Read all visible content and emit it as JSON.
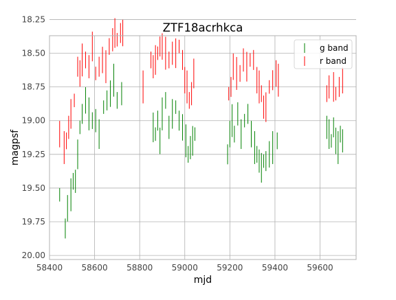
{
  "chart_data": {
    "type": "scatter",
    "title": "ZTF18acrhkca",
    "xlabel": "mjd",
    "ylabel": "magpsf",
    "xlim": [
      58400,
      59760
    ],
    "ylim": [
      20.03,
      18.37
    ],
    "y_inverted": true,
    "grid": true,
    "legend_position": "top-right",
    "x_ticks": [
      "58400",
      "58600",
      "58800",
      "59000",
      "59200",
      "59400",
      "59600"
    ],
    "y_ticks": [
      "18.25",
      "18.50",
      "18.75",
      "19.00",
      "19.25",
      "19.50",
      "19.75",
      "20.00"
    ],
    "marker": "vertical error bar (no marker)",
    "series": [
      {
        "name": "g band",
        "color": "#008000",
        "x": [
          58445,
          58470,
          58480,
          58495,
          58505,
          58515,
          58525,
          58535,
          58545,
          58560,
          58575,
          58590,
          58605,
          58620,
          58640,
          58655,
          58670,
          58685,
          58700,
          58720,
          58860,
          58870,
          58880,
          58890,
          58900,
          58915,
          58930,
          58945,
          58960,
          58975,
          58990,
          59005,
          59015,
          59025,
          59035,
          59045,
          59190,
          59200,
          59210,
          59220,
          59235,
          59250,
          59265,
          59280,
          59295,
          59310,
          59320,
          59330,
          59340,
          59350,
          59360,
          59375,
          59390,
          59410,
          59630,
          59640,
          59650,
          59660,
          59670,
          59680,
          59690,
          59700
        ],
        "y": [
          19.55,
          19.8,
          19.65,
          19.55,
          19.45,
          19.45,
          19.25,
          19.05,
          18.95,
          18.85,
          18.95,
          19.0,
          19.0,
          19.1,
          18.9,
          18.85,
          18.8,
          18.7,
          18.85,
          18.8,
          19.05,
          19.1,
          19.0,
          19.15,
          18.95,
          18.85,
          19.05,
          18.95,
          18.9,
          19.0,
          19.05,
          19.15,
          19.25,
          19.2,
          19.15,
          19.1,
          19.25,
          19.1,
          19.0,
          19.1,
          18.95,
          19.1,
          19.0,
          18.95,
          19.1,
          19.2,
          19.25,
          19.3,
          19.35,
          19.3,
          19.3,
          19.25,
          19.2,
          19.15,
          19.05,
          19.1,
          19.15,
          19.05,
          19.15,
          19.2,
          19.1,
          19.15
        ]
      },
      {
        "name": "r band",
        "color": "#ff0000",
        "x": [
          58445,
          58465,
          58475,
          58485,
          58495,
          58510,
          58525,
          58535,
          58545,
          58560,
          58575,
          58590,
          58605,
          58620,
          58635,
          58650,
          58665,
          58680,
          58690,
          58700,
          58715,
          58725,
          58815,
          58850,
          58860,
          58870,
          58880,
          58890,
          58900,
          58915,
          58930,
          58945,
          58960,
          58975,
          58990,
          59000,
          59010,
          59020,
          59030,
          59040,
          59195,
          59205,
          59215,
          59230,
          59245,
          59260,
          59275,
          59290,
          59305,
          59320,
          59330,
          59340,
          59350,
          59360,
          59375,
          59390,
          59405,
          59415,
          59630,
          59640,
          59660,
          59670,
          59685,
          59700
        ],
        "y": [
          19.1,
          19.2,
          19.15,
          19.05,
          18.95,
          18.85,
          18.6,
          18.65,
          18.55,
          18.55,
          18.6,
          18.45,
          18.65,
          18.6,
          18.55,
          18.6,
          18.45,
          18.4,
          18.35,
          18.4,
          18.35,
          18.35,
          18.75,
          18.55,
          18.6,
          18.55,
          18.5,
          18.45,
          18.45,
          18.5,
          18.55,
          18.5,
          18.5,
          18.45,
          18.55,
          18.7,
          18.75,
          18.85,
          18.8,
          18.65,
          18.8,
          18.75,
          18.6,
          18.65,
          18.65,
          18.55,
          18.6,
          18.55,
          18.55,
          18.7,
          18.75,
          18.8,
          18.9,
          18.9,
          18.75,
          18.7,
          18.65,
          18.7,
          18.8,
          18.75,
          18.75,
          18.8,
          18.75,
          18.7
        ]
      }
    ]
  }
}
